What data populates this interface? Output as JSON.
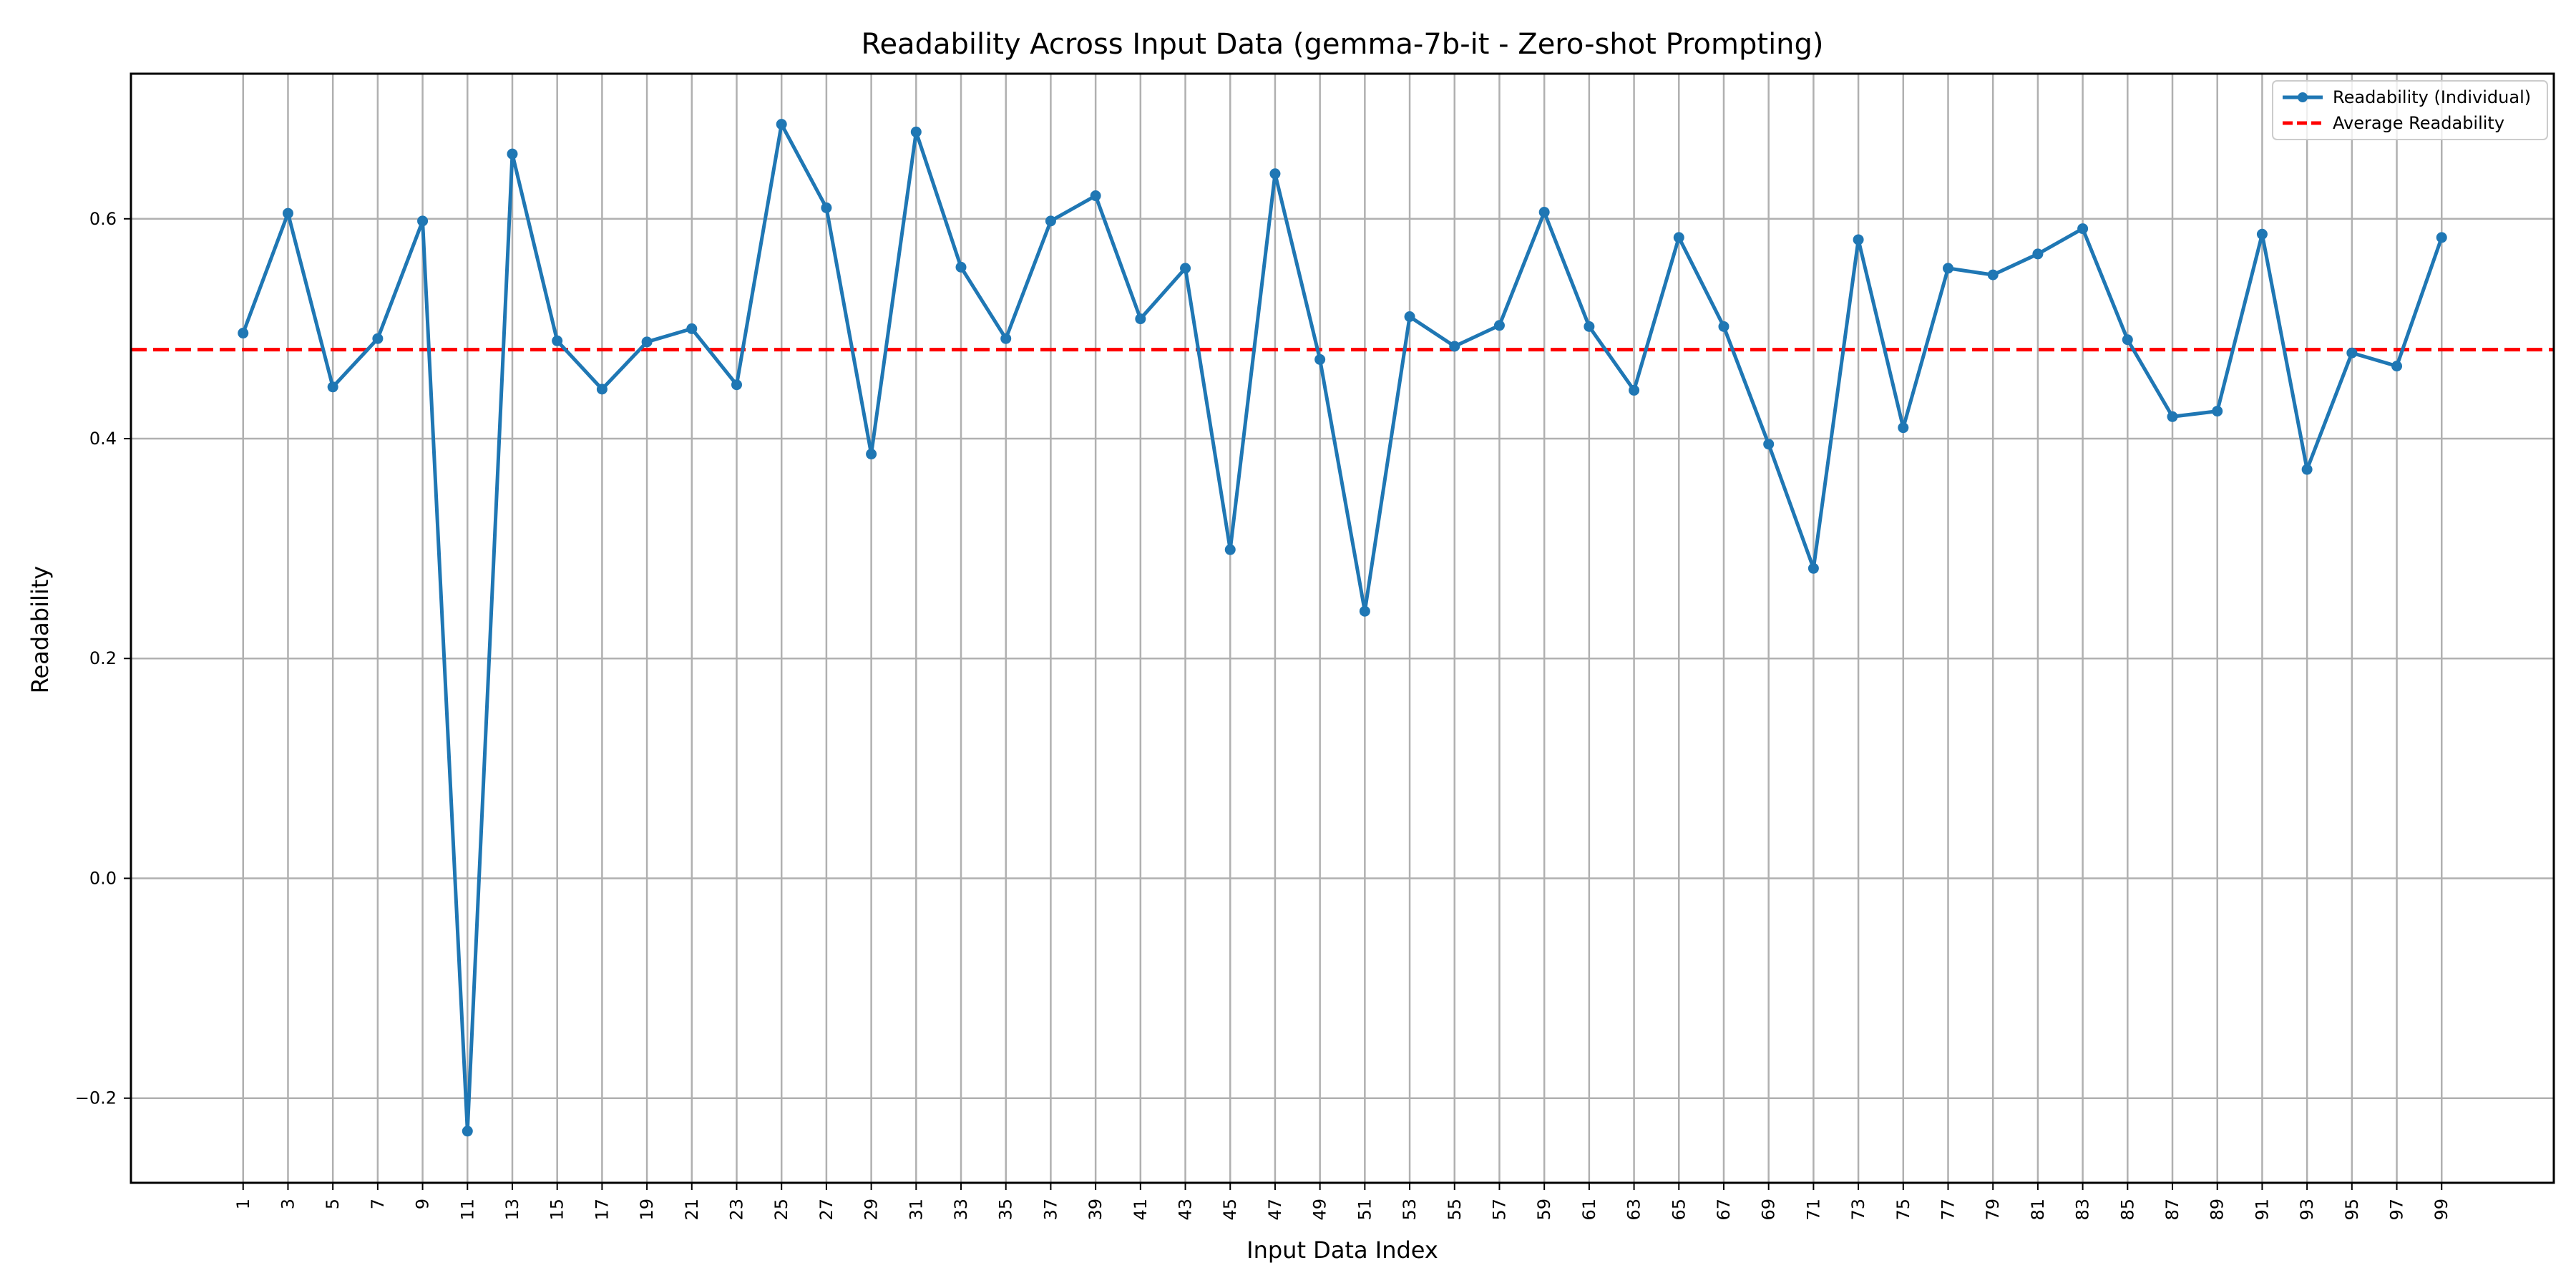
{
  "chart_data": {
    "type": "line",
    "title": "Readability Across Input Data (gemma-7b-it - Zero-shot Prompting)",
    "xlabel": "Input Data Index",
    "ylabel": "Readability",
    "x": [
      1,
      3,
      5,
      7,
      9,
      11,
      13,
      15,
      17,
      19,
      21,
      23,
      25,
      27,
      29,
      31,
      33,
      35,
      37,
      39,
      41,
      43,
      45,
      47,
      49,
      51,
      53,
      55,
      57,
      59,
      61,
      63,
      65,
      67,
      69,
      71,
      73,
      75,
      77,
      79,
      81,
      83,
      85,
      87,
      89,
      91,
      93,
      95,
      97,
      99
    ],
    "x_tick_labels": [
      "1",
      "3",
      "5",
      "7",
      "9",
      "11",
      "13",
      "15",
      "17",
      "19",
      "21",
      "23",
      "25",
      "27",
      "29",
      "31",
      "33",
      "35",
      "37",
      "39",
      "41",
      "43",
      "45",
      "47",
      "49",
      "51",
      "53",
      "55",
      "57",
      "59",
      "61",
      "63",
      "65",
      "67",
      "69",
      "71",
      "73",
      "75",
      "77",
      "79",
      "81",
      "83",
      "85",
      "87",
      "89",
      "91",
      "93",
      "95",
      "97",
      "99"
    ],
    "xlim": [
      -4,
      104
    ],
    "ylim": [
      -0.277,
      0.732
    ],
    "y_ticks": [
      -0.2,
      0.0,
      0.2,
      0.4,
      0.6
    ],
    "y_tick_labels": [
      "−0.2",
      "0.0",
      "0.2",
      "0.4",
      "0.6"
    ],
    "grid": true,
    "legend_position": "top-right",
    "series": [
      {
        "name": "Readability (Individual)",
        "color": "#1f77b4",
        "style": "solid-line-with-markers",
        "values": [
          0.496,
          0.605,
          0.447,
          0.491,
          0.598,
          -0.23,
          0.659,
          0.489,
          0.445,
          0.488,
          0.5,
          0.449,
          0.686,
          0.61,
          0.386,
          0.679,
          0.556,
          0.491,
          0.598,
          0.621,
          0.509,
          0.555,
          0.299,
          0.641,
          0.472,
          0.243,
          0.511,
          0.484,
          0.503,
          0.606,
          0.502,
          0.444,
          0.583,
          0.502,
          0.395,
          0.282,
          0.581,
          0.41,
          0.555,
          0.549,
          0.568,
          0.591,
          0.49,
          0.42,
          0.425,
          0.586,
          0.372,
          0.478,
          0.466,
          0.583
        ]
      },
      {
        "name": "Average Readability",
        "color": "#ff0000",
        "style": "dashed",
        "value": 0.481
      }
    ]
  }
}
